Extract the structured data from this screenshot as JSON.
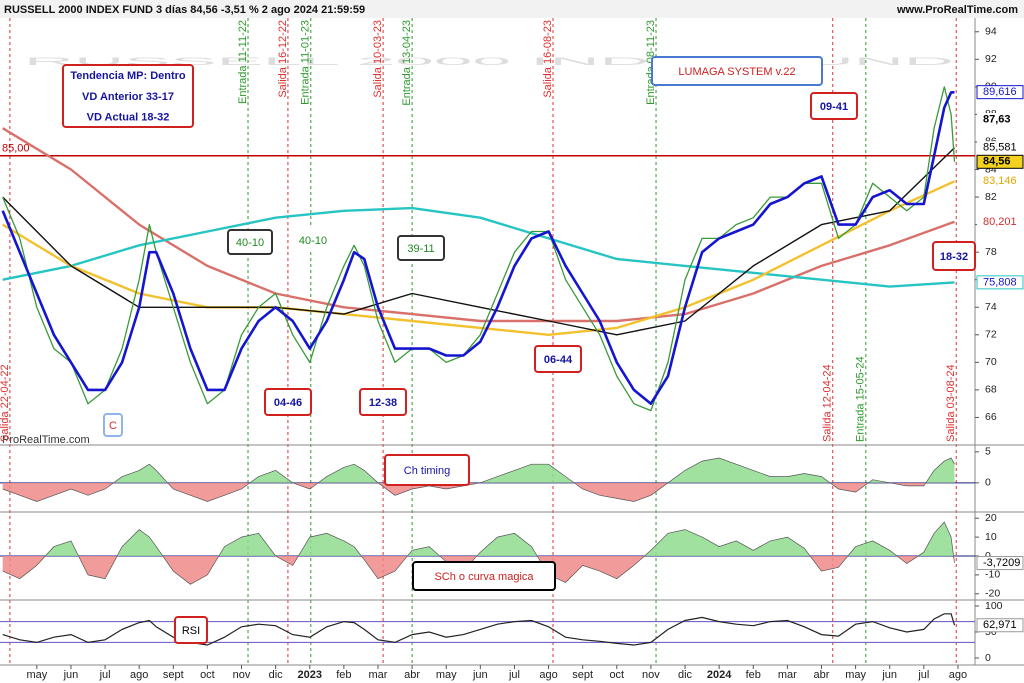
{
  "header": {
    "title": "RUSSELL 2000 INDEX FUND 3 días 84,56 -3,51 % 2 ago 2024 21:59:59",
    "site": "www.ProRealTime.com",
    "watermark": "RUSSELL 2000 INDEX FUND",
    "credit": "ProRealTime.com"
  },
  "chart_data": [
    {
      "type": "line",
      "x": [
        -1,
        -0.5,
        0,
        0.5,
        1,
        1.5,
        2,
        2.5,
        3,
        3.3,
        3.5,
        4,
        4.5,
        5,
        5.5,
        6,
        6.5,
        7,
        7.5,
        8,
        8.5,
        9,
        9.3,
        9.6,
        10,
        10.5,
        11,
        11.5,
        12,
        12.5,
        13,
        13.5,
        14,
        14.5,
        15,
        15.5,
        16,
        16.5,
        17,
        17.5,
        18,
        18.5,
        19,
        19.5,
        20,
        20.5,
        21,
        21.5,
        22,
        22.5,
        23,
        23.5,
        24,
        24.5,
        25,
        25.5,
        26,
        26.3,
        26.6,
        26.8,
        26.9
      ],
      "xlim": [
        -1.08,
        27.5
      ],
      "xticks": [
        {
          "value": 0,
          "label": "may"
        },
        {
          "value": 1,
          "label": "jun"
        },
        {
          "value": 2,
          "label": "jul"
        },
        {
          "value": 3,
          "label": "ago"
        },
        {
          "value": 4,
          "label": "sept"
        },
        {
          "value": 5,
          "label": "oct"
        },
        {
          "value": 6,
          "label": "nov"
        },
        {
          "value": 7,
          "label": "dic"
        },
        {
          "value": 8,
          "label": "2023"
        },
        {
          "value": 9,
          "label": "feb"
        },
        {
          "value": 10,
          "label": "mar"
        },
        {
          "value": 11,
          "label": "abr"
        },
        {
          "value": 12,
          "label": "may"
        },
        {
          "value": 13,
          "label": "jun"
        },
        {
          "value": 14,
          "label": "jul"
        },
        {
          "value": 15,
          "label": "ago"
        },
        {
          "value": 16,
          "label": "sept"
        },
        {
          "value": 17,
          "label": "oct"
        },
        {
          "value": 18,
          "label": "nov"
        },
        {
          "value": 19,
          "label": "dic"
        },
        {
          "value": 20,
          "label": "2024"
        },
        {
          "value": 21,
          "label": "feb"
        },
        {
          "value": 22,
          "label": "mar"
        },
        {
          "value": 23,
          "label": "abr"
        },
        {
          "value": 24,
          "label": "may"
        },
        {
          "value": 25,
          "label": "jun"
        },
        {
          "value": 26,
          "label": "jul"
        },
        {
          "value": 27,
          "label": "ago"
        }
      ],
      "ylim": [
        64,
        95
      ],
      "yticks": [
        66,
        68,
        70,
        72,
        74,
        76,
        78,
        80,
        82,
        84,
        86,
        88,
        90,
        92,
        94
      ],
      "series": [
        {
          "color": "#d9706a",
          "x": [
            -1,
            1,
            3,
            5,
            7,
            9,
            11,
            13,
            15,
            17,
            19,
            21,
            23,
            25,
            26.9
          ],
          "values": [
            87,
            84,
            80,
            77,
            75,
            74,
            73.5,
            73,
            73,
            73,
            73.5,
            75,
            77,
            78.5,
            80.201
          ]
        },
        {
          "color": "#27c4c4",
          "x": [
            -1,
            1,
            3,
            5,
            7,
            9,
            11,
            13,
            15,
            17,
            19,
            21,
            23,
            25,
            26.9
          ],
          "values": [
            76,
            77,
            78.5,
            79.5,
            80.5,
            81,
            81.2,
            80.5,
            79,
            77.5,
            77,
            76.5,
            76,
            75.5,
            75.808
          ]
        },
        {
          "color": "#f2c12e",
          "x": [
            -1,
            1,
            3,
            5,
            7,
            9,
            11,
            13,
            15,
            17,
            19,
            21,
            23,
            25,
            26.9
          ],
          "values": [
            80,
            77,
            75,
            74,
            74,
            73.5,
            73,
            72.5,
            72,
            72.5,
            74,
            76,
            78.5,
            81,
            83.146
          ]
        },
        {
          "color": "#111111",
          "x": [
            -1,
            1,
            3,
            5,
            7,
            9,
            11,
            13,
            15,
            17,
            19,
            21,
            23,
            25,
            26.9
          ],
          "values": [
            82,
            77,
            74,
            74,
            74,
            73.5,
            75,
            74,
            73,
            72,
            73,
            77,
            80,
            81,
            85.581
          ]
        },
        {
          "color": "#3a9a3a",
          "values": [
            82,
            79,
            74,
            71,
            70,
            67,
            68,
            71,
            76,
            80,
            78,
            74,
            70,
            67,
            68,
            72,
            74,
            75,
            72,
            70,
            74,
            77,
            78.5,
            77,
            73,
            70,
            71,
            71,
            70,
            70.5,
            72,
            75,
            78,
            79.5,
            79.5,
            76,
            74,
            72,
            69,
            67,
            66.5,
            70,
            76,
            79,
            79,
            80,
            80.5,
            82,
            82,
            83,
            83,
            79,
            80,
            83,
            82,
            81,
            82,
            87,
            90,
            88,
            84.56
          ]
        },
        {
          "color": "#1515d0",
          "values": [
            81,
            78,
            75,
            72,
            70,
            68,
            68,
            70,
            74,
            78,
            78,
            75,
            71,
            68,
            68,
            71,
            73,
            74,
            73,
            71,
            73,
            76,
            78,
            77.5,
            74,
            71,
            71,
            71,
            70.5,
            70.5,
            71.5,
            74,
            77,
            79,
            79.5,
            77,
            75,
            73,
            70,
            68,
            67,
            69,
            74,
            78,
            79,
            79.5,
            80,
            81.5,
            82,
            83,
            83.5,
            80,
            80,
            82,
            82.5,
            81.5,
            81.5,
            85,
            88.5,
            89.6,
            89.616
          ]
        }
      ],
      "levels": [
        {
          "value": 85,
          "label": "85,00",
          "color": "#c00000"
        }
      ],
      "level_labels": [
        {
          "value": 89.616,
          "label": "89,616",
          "color": "#1515d0"
        },
        {
          "value": 87.63,
          "label": "87,63",
          "color": "#000000"
        },
        {
          "value": 85.581,
          "label": "85,581",
          "color": "#000000"
        },
        {
          "value": 84.56,
          "label": "84,56",
          "color": "#000000"
        },
        {
          "value": 83.146,
          "label": "83,146",
          "color": "#e0a800"
        },
        {
          "value": 80.201,
          "label": "80,201",
          "color": "#d03030"
        },
        {
          "value": 75.808,
          "label": "75,808",
          "color": "#1515d0"
        }
      ],
      "signals": [
        {
          "label": "Salida 22-04-22",
          "x": -0.79,
          "color": "#e03030"
        },
        {
          "label": "Entrada 11-11-22",
          "x": 6.19,
          "color": "#2e9a2e"
        },
        {
          "label": "Salida 16-12-22",
          "x": 7.36,
          "color": "#e03030"
        },
        {
          "label": "Entrada 11-01-23",
          "x": 8.03,
          "color": "#2e9a2e"
        },
        {
          "label": "Salida 10-03-23",
          "x": 10.15,
          "color": "#e03030"
        },
        {
          "label": "Entrada 13-04-23",
          "x": 11.0,
          "color": "#2e9a2e"
        },
        {
          "label": "Salida 16-08-23",
          "x": 15.13,
          "color": "#e03030"
        },
        {
          "label": "Entrada 08-11-23",
          "x": 18.15,
          "color": "#2e9a2e"
        },
        {
          "label": "Salida 12-04-24",
          "x": 23.33,
          "color": "#e03030"
        },
        {
          "label": "Entrada 15-05-24",
          "x": 24.3,
          "color": "#2e9a2e"
        },
        {
          "label": "Salida 03-08-24",
          "x": 26.95,
          "color": "#e03030"
        }
      ],
      "annotations": [
        {
          "lines": [
            "Tendencia MP: Dentro",
            "VD Anterior 33-17",
            "VD Actual 18-32"
          ]
        },
        {
          "lines": [
            "LUMAGA SYSTEM v.22"
          ]
        },
        {
          "lines": [
            "09-41"
          ]
        },
        {
          "lines": [
            "40-10"
          ]
        },
        {
          "lines": [
            "40-10"
          ]
        },
        {
          "lines": [
            "39-11"
          ]
        },
        {
          "lines": [
            "04-46"
          ]
        },
        {
          "lines": [
            "12-38"
          ]
        },
        {
          "lines": [
            "06-44"
          ]
        },
        {
          "lines": [
            "18-32"
          ]
        },
        {
          "lines": [
            "C"
          ]
        }
      ]
    },
    {
      "type": "area",
      "title": "Ch timing",
      "ylim": [
        -4.7,
        6.1
      ],
      "yticks": [
        5,
        0
      ],
      "levels": [
        {
          "value": 0,
          "color": "#1a1a80"
        }
      ],
      "values": [
        -1,
        -2,
        -3,
        -2,
        -1,
        -2,
        -1,
        1,
        2,
        3,
        2,
        -1,
        -2,
        -3,
        -2,
        -1,
        1,
        2,
        0,
        -1,
        1,
        2.5,
        3,
        2,
        0,
        -2,
        -1,
        -0.5,
        -1,
        -0.5,
        0,
        1,
        2,
        3,
        3,
        1,
        -1,
        -2,
        -2.5,
        -3,
        -2,
        0,
        2,
        3.5,
        4,
        3,
        2,
        1,
        1,
        1.5,
        1,
        -1,
        -1.5,
        0.5,
        0,
        -0.5,
        -0.5,
        2,
        3.5,
        4,
        3
      ]
    },
    {
      "type": "area",
      "title": "SCh o curva magica",
      "ylim": [
        -23.3,
        23.3
      ],
      "yticks": [
        20,
        10,
        0,
        -10,
        -20
      ],
      "levels": [
        {
          "value": 0,
          "color": "#1a1a80"
        }
      ],
      "level_labels": [
        {
          "value": -3.7209,
          "label": "-3,7209",
          "color": "#000000"
        }
      ],
      "values": [
        -8,
        -12,
        -5,
        5,
        8,
        -10,
        -12,
        5,
        14,
        10,
        5,
        -8,
        -15,
        -10,
        5,
        10,
        12,
        0,
        -5,
        10,
        12,
        8,
        5,
        -2,
        -12,
        -8,
        3,
        5,
        -3,
        -8,
        2,
        10,
        12,
        5,
        -10,
        -14,
        -5,
        -8,
        -12,
        -5,
        3,
        12,
        14,
        10,
        5,
        8,
        3,
        8,
        10,
        4,
        -8,
        -6,
        5,
        8,
        3,
        -4,
        2,
        12,
        18,
        10,
        -3.7209
      ]
    },
    {
      "type": "line",
      "title": "RSI",
      "ylim": [
        -13.5,
        111.5
      ],
      "yticks": [
        100,
        50,
        0
      ],
      "levels": [
        {
          "value": 70,
          "color": "#6a4fc0"
        },
        {
          "value": 30,
          "color": "#6a4fc0"
        }
      ],
      "level_labels": [
        {
          "value": 62.971,
          "label": "62,971",
          "color": "#000000"
        }
      ],
      "values": [
        45,
        35,
        30,
        40,
        45,
        30,
        35,
        55,
        68,
        72,
        60,
        40,
        30,
        25,
        40,
        60,
        65,
        62,
        45,
        40,
        60,
        70,
        68,
        55,
        35,
        30,
        45,
        50,
        40,
        45,
        55,
        65,
        70,
        72,
        60,
        40,
        35,
        32,
        28,
        25,
        30,
        55,
        72,
        78,
        70,
        65,
        62,
        70,
        72,
        60,
        45,
        42,
        65,
        70,
        58,
        50,
        55,
        75,
        85,
        85,
        62.971
      ]
    }
  ]
}
